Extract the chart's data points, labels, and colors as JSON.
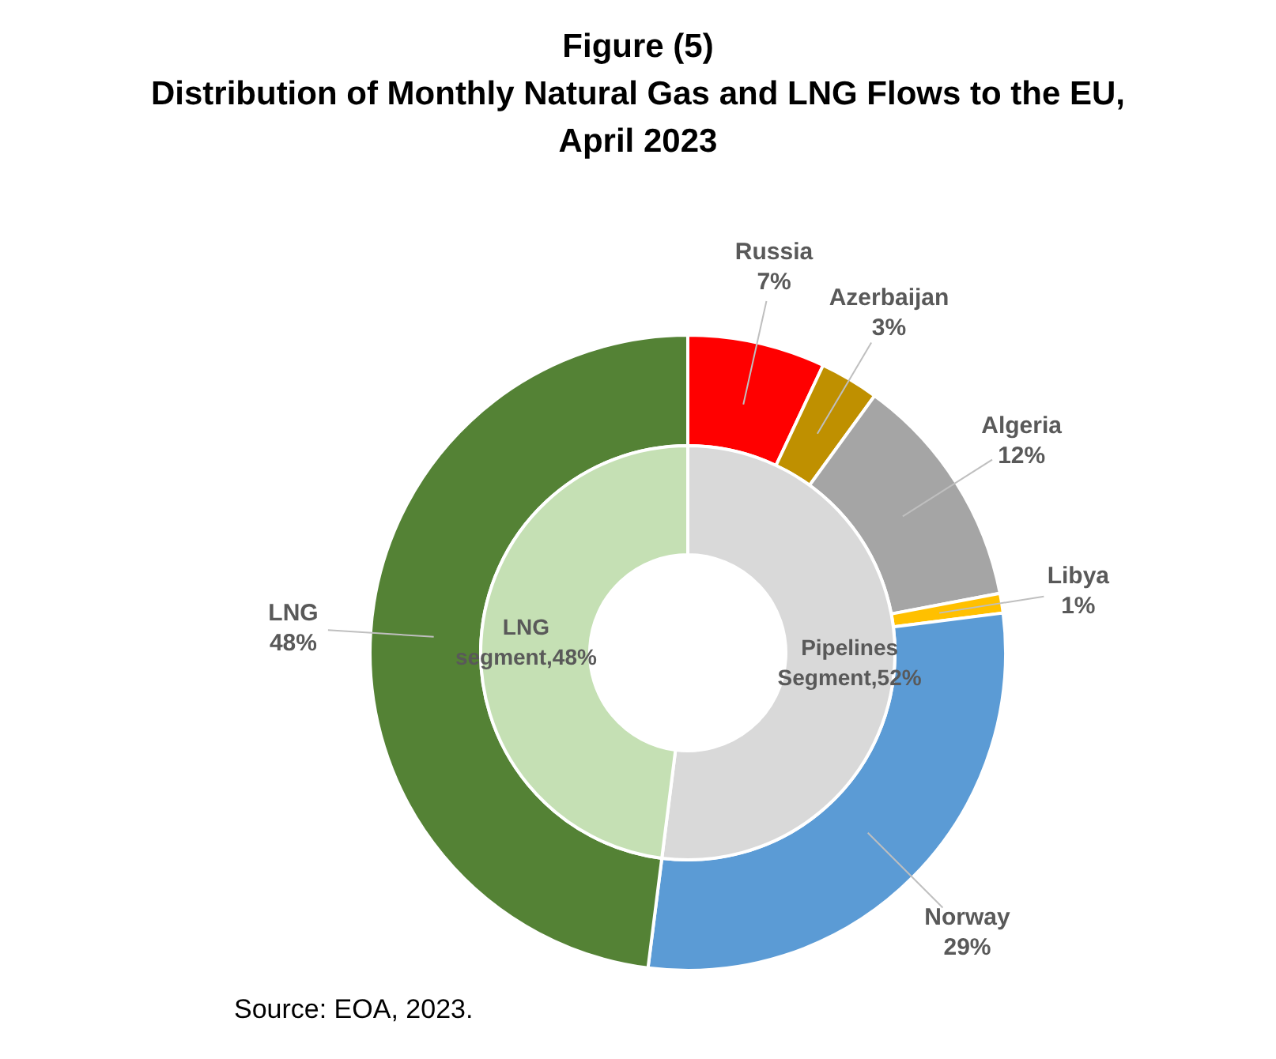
{
  "chart_data": [
    {
      "type": "donut",
      "title": "Figure (5)",
      "subtitle": "Distribution of Monthly Natural Gas and LNG Flows to the EU, April 2023",
      "categories": [
        "Russia",
        "Azerbaijan",
        "Algeria",
        "Libya",
        "Norway",
        "LNG"
      ],
      "values": [
        7,
        3,
        12,
        1,
        29,
        48
      ],
      "value_labels": [
        "7%",
        "3%",
        "12%",
        "1%",
        "29%",
        "48%"
      ],
      "colors": [
        "#ff0000",
        "#bf9000",
        "#a5a5a5",
        "#ffc000",
        "#5b9bd5",
        "#548235"
      ],
      "annotations": [
        "Source: EOA, 2023."
      ]
    },
    {
      "type": "donut",
      "categories": [
        "Pipelines Segment,52%",
        "LNG segment,48%"
      ],
      "values": [
        52,
        48
      ],
      "colors": [
        "#d9d9d9",
        "#c5e0b4"
      ]
    }
  ]
}
